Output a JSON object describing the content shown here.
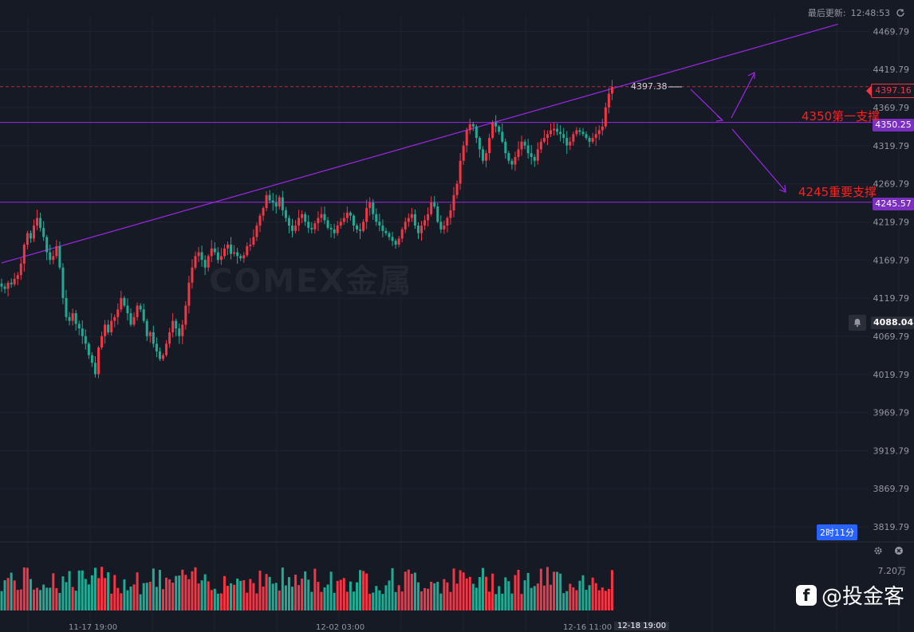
{
  "header": {
    "updated_label": "最后更新:",
    "updated_time": "12:48:53"
  },
  "y_axis": {
    "ticks": [
      4469.79,
      4419.79,
      4369.79,
      4319.79,
      4269.79,
      4219.79,
      4169.79,
      4119.79,
      4069.79,
      4019.79,
      3969.79,
      3919.79,
      3869.79,
      3819.79
    ]
  },
  "price_tags": {
    "last": "4397.16",
    "level_4350": "4350.25",
    "level_4245": "4245.57",
    "crosshair": "4088.04"
  },
  "high_label": "4397.38",
  "annotations": {
    "support1": "4350第一支撑",
    "support2": "4245重要支撑"
  },
  "timeframe_badge": "2时11分",
  "volume": {
    "max_label": "7.20万"
  },
  "x_axis": {
    "labels": [
      "11-17 19:00",
      "12-02 03:00",
      "12-16 11:00"
    ],
    "active": "12-18 19:00"
  },
  "watermark": {
    "brand": "@投金客",
    "logo": "f",
    "center": "COMEX金属"
  },
  "colors": {
    "up": "#f23645",
    "down": "#22ab94",
    "bg": "#161a25",
    "level": "#9c27e8",
    "annotation": "#ff1f1f"
  },
  "chart_data": {
    "type": "candlestick",
    "ylim": [
      3800,
      4490
    ],
    "levels": [
      4350.25,
      4245.57
    ],
    "last_price": 4397.16,
    "trendline": {
      "from": {
        "idx": 0,
        "price": 4166
      },
      "to": {
        "idx": 212,
        "price": 4475
      }
    },
    "closes": [
      4135,
      4132,
      4140,
      4138,
      4145,
      4150,
      4165,
      4190,
      4205,
      4198,
      4215,
      4225,
      4212,
      4200,
      4180,
      4170,
      4175,
      4188,
      4160,
      4120,
      4095,
      4090,
      4100,
      4086,
      4080,
      4070,
      4060,
      4045,
      4035,
      4020,
      4055,
      4070,
      4085,
      4075,
      4090,
      4095,
      4105,
      4120,
      4110,
      4100,
      4085,
      4095,
      4110,
      4105,
      4090,
      4070,
      4075,
      4060,
      4050,
      4040,
      4045,
      4060,
      4075,
      4090,
      4080,
      4070,
      4085,
      4110,
      4140,
      4160,
      4175,
      4180,
      4170,
      4160,
      4175,
      4185,
      4180,
      4170,
      4175,
      4185,
      4190,
      4178,
      4180,
      4175,
      4172,
      4176,
      4188,
      4190,
      4200,
      4215,
      4228,
      4238,
      4255,
      4248,
      4245,
      4240,
      4252,
      4235,
      4225,
      4215,
      4208,
      4215,
      4225,
      4230,
      4220,
      4212,
      4210,
      4218,
      4225,
      4230,
      4222,
      4212,
      4210,
      4205,
      4215,
      4220,
      4225,
      4232,
      4228,
      4215,
      4210,
      4208,
      4220,
      4238,
      4245,
      4230,
      4220,
      4215,
      4208,
      4205,
      4200,
      4195,
      4190,
      4198,
      4210,
      4220,
      4225,
      4230,
      4215,
      4205,
      4215,
      4222,
      4230,
      4245,
      4240,
      4220,
      4210,
      4215,
      4225,
      4235,
      4255,
      4270,
      4300,
      4320,
      4340,
      4348,
      4345,
      4330,
      4315,
      4300,
      4310,
      4330,
      4350,
      4345,
      4338,
      4325,
      4310,
      4300,
      4295,
      4305,
      4315,
      4325,
      4320,
      4310,
      4305,
      4300,
      4315,
      4325,
      4330,
      4335,
      4340,
      4342,
      4338,
      4335,
      4330,
      4320,
      4325,
      4335,
      4340,
      4338,
      4335,
      4330,
      4325,
      4330,
      4335,
      4340,
      4345,
      4370,
      4388,
      4397
    ],
    "vol_max": 72000
  }
}
